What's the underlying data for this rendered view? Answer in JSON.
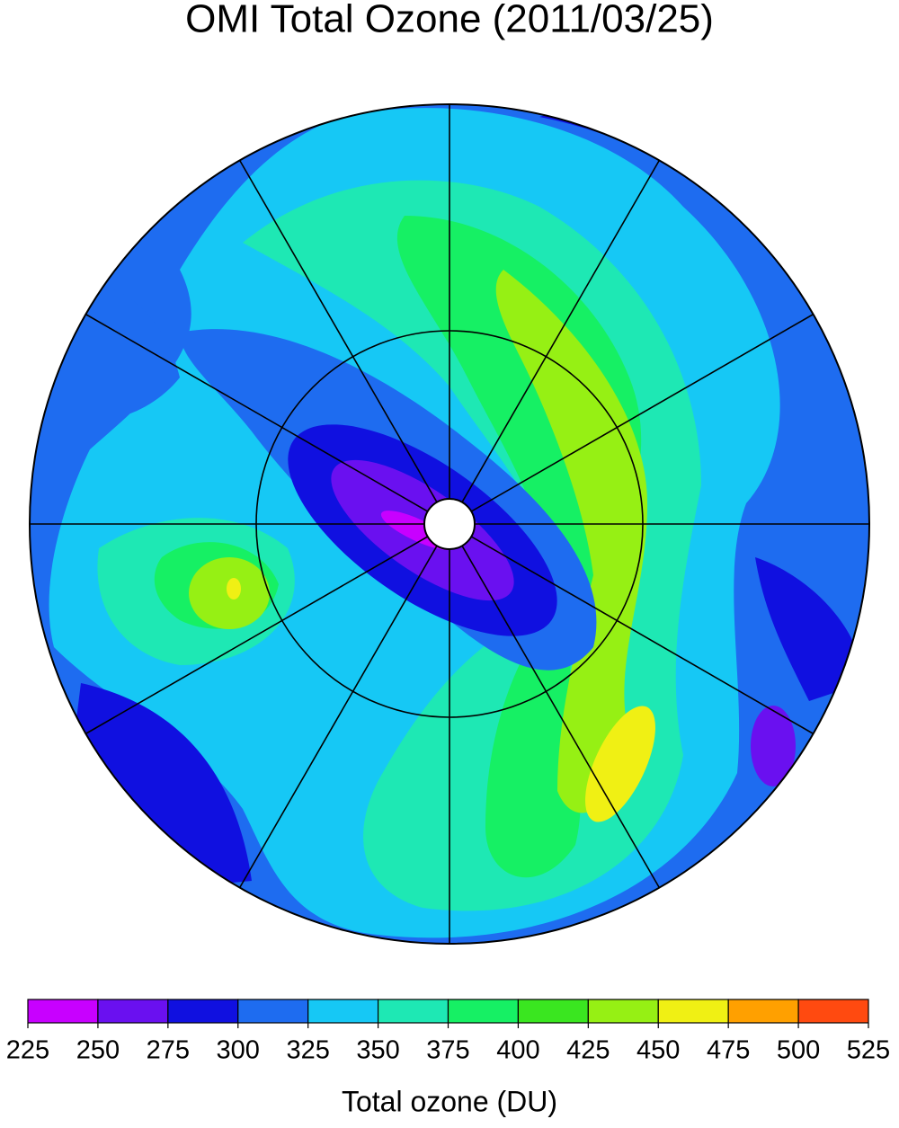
{
  "title": "OMI Total Ozone (2011/03/25)",
  "colorbar": {
    "label": "Total ozone (DU)",
    "ticks": [
      225,
      250,
      275,
      300,
      325,
      350,
      375,
      400,
      425,
      450,
      475,
      500,
      525
    ],
    "colors": [
      "#c800ff",
      "#6a10f0",
      "#1010e0",
      "#1e6cf0",
      "#16c8f5",
      "#1ee8b4",
      "#16f064",
      "#3ae620",
      "#96f014",
      "#f0f014",
      "#ffa000",
      "#ff4a10"
    ]
  }
}
